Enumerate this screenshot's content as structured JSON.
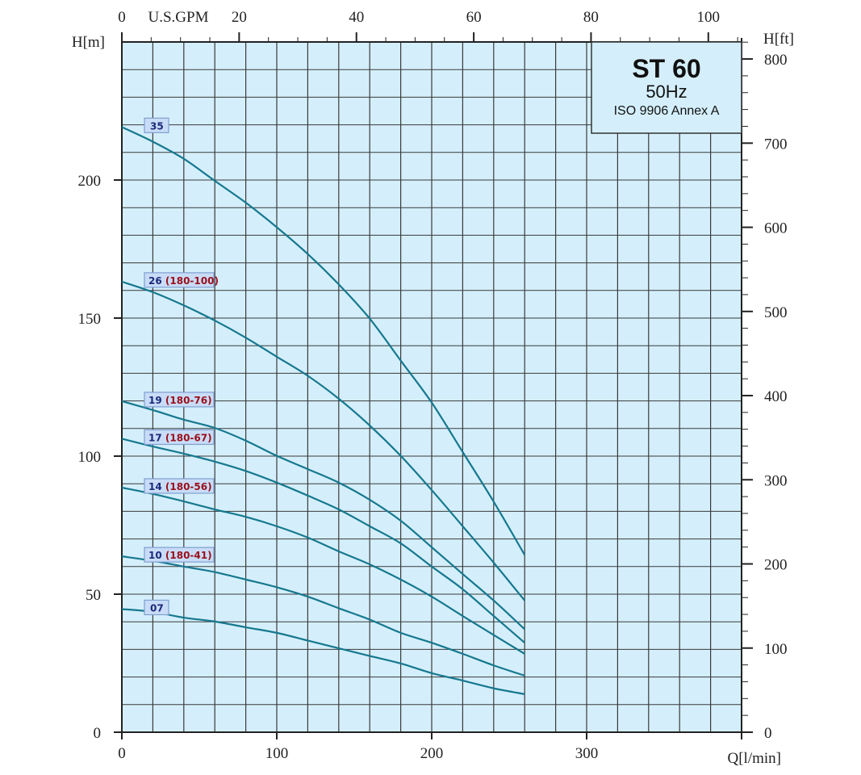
{
  "chart_data": {
    "type": "line",
    "title": "ST 60",
    "subtitle": "50Hz",
    "note": "ISO 9906 Annex A",
    "xlabel": "Q[l/min]",
    "ylabel": "H[m]",
    "y2label": "H[ft]",
    "x2label": "U.S.GPM",
    "xlim": [
      0,
      400
    ],
    "ylim": [
      0,
      250
    ],
    "grid": true,
    "x_ticks": [
      0,
      100,
      200,
      300
    ],
    "y_ticks": [
      0,
      50,
      100,
      150,
      200
    ],
    "y2_ticks": [
      0,
      100,
      200,
      300,
      400,
      500,
      600,
      700,
      800
    ],
    "x2_ticks": [
      0,
      20,
      40,
      60,
      80,
      100
    ],
    "colors": {
      "curve": "#16788f",
      "plot_bg": "#d4effb",
      "grid": "#3a3a3a",
      "label_num": "#1a2a7a",
      "label_model": "#9a0f1a",
      "label_bg": "#c9dcf7"
    },
    "x": [
      0,
      20,
      40,
      60,
      80,
      100,
      120,
      140,
      160,
      180,
      200,
      220,
      240,
      260
    ],
    "series": [
      {
        "name": "35",
        "model": "",
        "values": [
          219.2,
          213.9,
          207.7,
          199.7,
          191.8,
          182.9,
          173.2,
          162.2,
          149.8,
          134.6,
          119.4,
          101.5,
          83.5,
          64.2
        ]
      },
      {
        "name": "26",
        "model": "(180-100)",
        "values": [
          163.2,
          159.4,
          154.6,
          149.1,
          142.9,
          136.0,
          129.1,
          120.8,
          111.1,
          100.1,
          87.7,
          74.6,
          61.4,
          47.7
        ]
      },
      {
        "name": "19",
        "model": "(180-76)",
        "values": [
          119.9,
          116.7,
          113.2,
          110.2,
          105.6,
          100.1,
          95.3,
          90.4,
          84.2,
          76.6,
          67.0,
          57.3,
          47.7,
          37.3
        ]
      },
      {
        "name": "17",
        "model": "(180-67)",
        "values": [
          106.3,
          103.5,
          100.9,
          98.0,
          94.6,
          90.4,
          85.7,
          80.7,
          74.6,
          68.4,
          60.0,
          51.8,
          42.1,
          32.4
        ]
      },
      {
        "name": "14",
        "model": "(180-56)",
        "values": [
          88.6,
          86.3,
          83.6,
          80.7,
          78.0,
          74.6,
          70.5,
          65.5,
          60.8,
          55.3,
          49.1,
          42.1,
          35.2,
          28.4
        ]
      },
      {
        "name": "10",
        "model": "(180-41)",
        "values": [
          63.7,
          62.1,
          60.0,
          58.0,
          55.3,
          52.5,
          49.1,
          44.9,
          40.8,
          36.0,
          32.4,
          28.4,
          24.2,
          20.5
        ]
      },
      {
        "name": "07",
        "model": "",
        "values": [
          44.6,
          43.6,
          41.5,
          40.1,
          38.0,
          36.0,
          33.2,
          30.4,
          27.6,
          24.9,
          21.4,
          18.7,
          15.9,
          13.8
        ]
      }
    ]
  }
}
